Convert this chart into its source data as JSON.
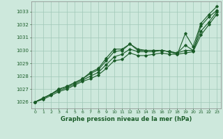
{
  "title": "Graphe pression niveau de la mer (hPa)",
  "background_color": "#cde8dc",
  "grid_color": "#a0c8b8",
  "line_color1": "#1a5c28",
  "line_color2": "#1a5c28",
  "line_color3": "#1a5c28",
  "line_color4": "#1a5c28",
  "xlim": [
    -0.5,
    23.5
  ],
  "ylim": [
    1025.5,
    1033.8
  ],
  "xticks": [
    0,
    1,
    2,
    3,
    4,
    5,
    6,
    7,
    8,
    9,
    10,
    11,
    12,
    13,
    14,
    15,
    16,
    17,
    18,
    19,
    20,
    21,
    22,
    23
  ],
  "yticks": [
    1026,
    1027,
    1028,
    1029,
    1030,
    1031,
    1032,
    1033
  ],
  "series1": [
    1026.0,
    1026.3,
    1026.6,
    1027.0,
    1027.2,
    1027.5,
    1027.8,
    1028.3,
    1028.6,
    1029.4,
    1030.1,
    1030.1,
    1030.5,
    1030.1,
    1030.0,
    1030.0,
    1030.0,
    1029.9,
    1029.7,
    1031.3,
    1030.3,
    1032.1,
    1032.8,
    1033.4
  ],
  "series2": [
    1026.0,
    1026.3,
    1026.6,
    1027.0,
    1027.2,
    1027.5,
    1027.8,
    1028.2,
    1028.5,
    1029.2,
    1029.9,
    1030.0,
    1030.5,
    1030.0,
    1030.0,
    1030.0,
    1030.0,
    1029.9,
    1029.8,
    1030.4,
    1030.0,
    1031.9,
    1032.6,
    1033.1
  ],
  "series3": [
    1026.0,
    1026.3,
    1026.6,
    1026.9,
    1027.1,
    1027.4,
    1027.7,
    1028.0,
    1028.3,
    1028.9,
    1029.5,
    1029.7,
    1030.1,
    1029.9,
    1029.9,
    1029.9,
    1030.0,
    1029.9,
    1029.8,
    1030.0,
    1030.0,
    1031.5,
    1032.2,
    1033.0
  ],
  "series4": [
    1026.0,
    1026.2,
    1026.5,
    1026.8,
    1027.0,
    1027.3,
    1027.6,
    1027.8,
    1028.1,
    1028.6,
    1029.2,
    1029.3,
    1029.8,
    1029.6,
    1029.6,
    1029.7,
    1029.8,
    1029.7,
    1029.7,
    1029.8,
    1029.9,
    1031.2,
    1032.0,
    1032.8
  ]
}
